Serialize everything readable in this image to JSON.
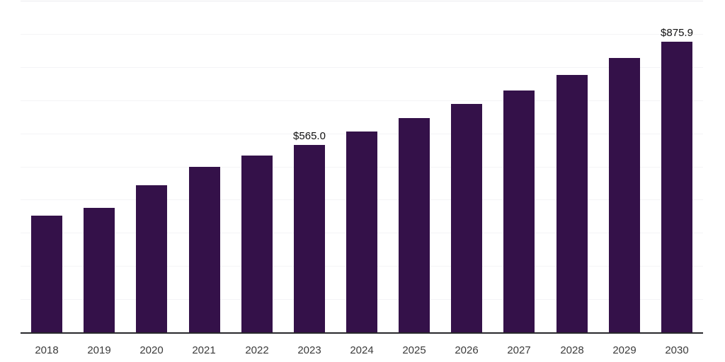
{
  "chart_data": {
    "type": "bar",
    "title": "",
    "xlabel": "",
    "ylabel": "",
    "categories": [
      "2018",
      "2019",
      "2020",
      "2021",
      "2022",
      "2023",
      "2024",
      "2025",
      "2026",
      "2027",
      "2028",
      "2029",
      "2030"
    ],
    "values": [
      352,
      375,
      443,
      499,
      534,
      565.0,
      605,
      645,
      688,
      730,
      776,
      827,
      875.9
    ],
    "bar_labels": [
      "",
      "",
      "",
      "",
      "",
      "$565.0",
      "",
      "",
      "",
      "",
      "",
      "",
      "$875.9"
    ],
    "ylim": [
      0,
      1000
    ],
    "gridline_interval": 100,
    "grid_on": true,
    "legend_position": "none",
    "colors": {
      "bar": "#341149",
      "axis_line": "#28282c",
      "gridline": "#f4f4f6",
      "top_gridline": "#ececef",
      "tick_label": "#3b3b3b",
      "data_label": "#111111",
      "background": "#ffffff"
    }
  }
}
